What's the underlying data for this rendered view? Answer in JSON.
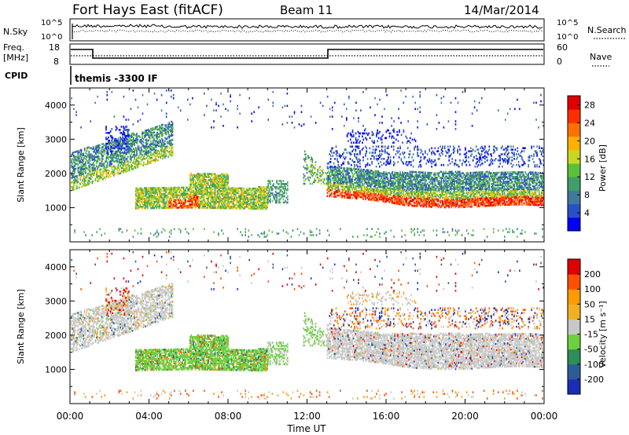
{
  "header": {
    "station": "Fort Hays East (fitACF)",
    "beam": "Beam 11",
    "date": "14/Mar/2014"
  },
  "top_panels": {
    "noise_left": "N.Sky",
    "noise_right": "N.Search",
    "noise_ticks_left": [
      "10^5",
      "10^0"
    ],
    "noise_ticks_right": [
      "10^5",
      "10^0"
    ],
    "freq_label_1": "Freq.",
    "freq_label_2": "[MHz]",
    "freq_ticks": [
      "18",
      "8"
    ],
    "nave_label": "Nave",
    "nave_ticks": [
      "60",
      "0"
    ],
    "cpid_label": "CPID",
    "cpid_text": "themis -3300 IF"
  },
  "colors": {
    "power": [
      "#0000ff",
      "#2b4fc8",
      "#3f7a9a",
      "#3f9e6a",
      "#5cc038",
      "#c8d820",
      "#ffb000",
      "#ff7000",
      "#ff3000",
      "#e00000"
    ],
    "velocity": [
      "#e00000",
      "#ff5000",
      "#ff9a00",
      "#f0b020",
      "#c8c8c8",
      "#6cd040",
      "#2e8e5a",
      "#2c5c98",
      "#1a2eb4"
    ],
    "ground": "#c8c8c8"
  },
  "chart_data": [
    {
      "type": "heatmap",
      "name": "power-panel",
      "ylabel": "Slant Range [km]",
      "yticks": [
        "1000",
        "2000",
        "3000",
        "4000"
      ],
      "ylim": [
        0,
        4500
      ],
      "xlim": [
        0,
        24
      ],
      "colorbar_label": "Power [dB]",
      "colorbar_ticks": [
        "4",
        "8",
        "12",
        "16",
        "20",
        "24",
        "28"
      ],
      "colorbar_range": [
        0,
        30
      ]
    },
    {
      "type": "heatmap",
      "name": "velocity-panel",
      "ylabel": "Slant Range [km]",
      "yticks": [
        "1000",
        "2000",
        "3000",
        "4000"
      ],
      "ylim": [
        0,
        4500
      ],
      "xlim": [
        0,
        24
      ],
      "xlabel": "Time UT",
      "xticks": [
        "00:00",
        "04:00",
        "08:00",
        "12:00",
        "16:00",
        "20:00",
        "00:00"
      ],
      "colorbar_label": "Velocity [m s⁻¹]",
      "colorbar_ticks": [
        "200",
        "100",
        "50",
        "15",
        "-15",
        "-50",
        "-100",
        "-200"
      ]
    }
  ]
}
